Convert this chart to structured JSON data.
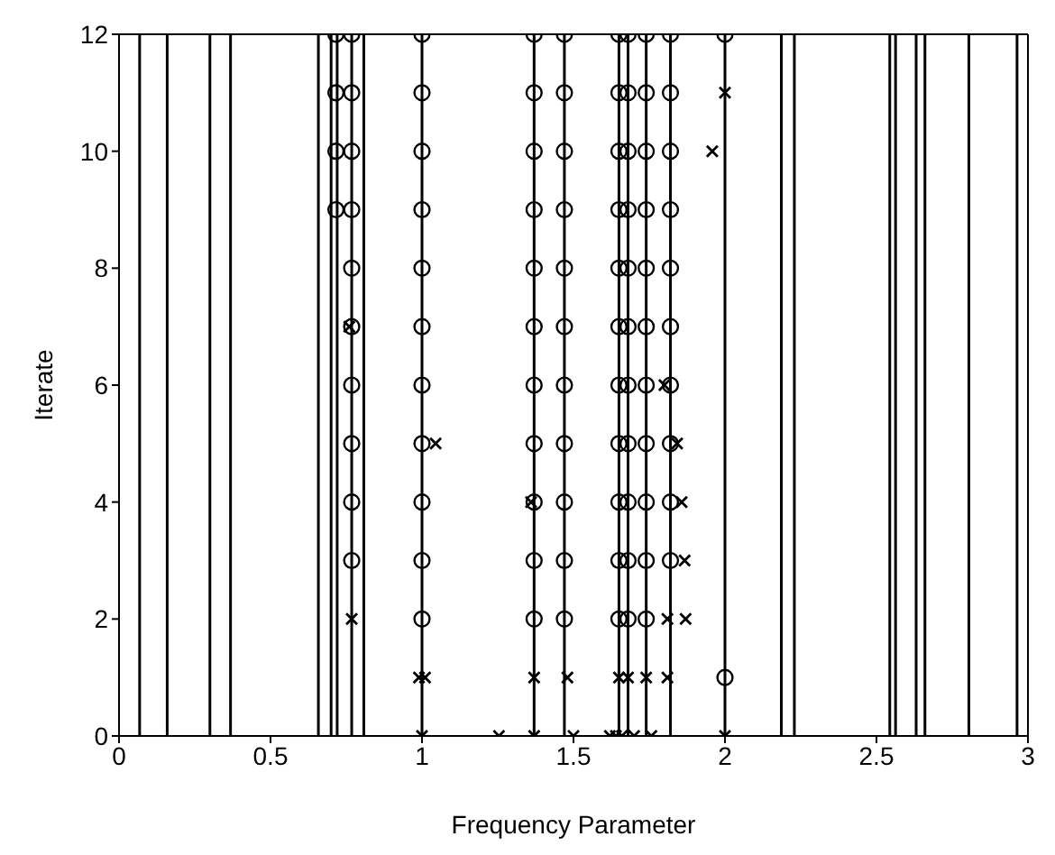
{
  "chart_data": {
    "type": "scatter",
    "xlabel": "Frequency Parameter",
    "ylabel": "Iterate",
    "xlim": [
      0,
      3
    ],
    "ylim": [
      0,
      12
    ],
    "xticks": [
      0,
      0.5,
      1,
      1.5,
      2,
      2.5,
      3
    ],
    "yticks": [
      0,
      2,
      4,
      6,
      8,
      10,
      12
    ],
    "grid": false,
    "legend": false,
    "series": [
      {
        "type": "scatter",
        "marker": "circle",
        "color": "#000000",
        "x": [
          0.716,
          0.716,
          0.716,
          0.716,
          0.768,
          0.768,
          0.768,
          0.768,
          0.768,
          0.768,
          0.768,
          0.768,
          0.768,
          0.768,
          1.0,
          1.0,
          1.0,
          1.0,
          1.0,
          1.0,
          1.0,
          1.0,
          1.0,
          1.0,
          1.0,
          1.37,
          1.37,
          1.37,
          1.37,
          1.37,
          1.37,
          1.37,
          1.37,
          1.37,
          1.37,
          1.37,
          1.47,
          1.47,
          1.47,
          1.47,
          1.47,
          1.47,
          1.47,
          1.47,
          1.47,
          1.47,
          1.47,
          1.65,
          1.65,
          1.65,
          1.65,
          1.65,
          1.65,
          1.65,
          1.65,
          1.65,
          1.65,
          1.65,
          1.68,
          1.68,
          1.68,
          1.68,
          1.68,
          1.68,
          1.68,
          1.68,
          1.68,
          1.68,
          1.68,
          1.74,
          1.74,
          1.74,
          1.74,
          1.74,
          1.74,
          1.74,
          1.74,
          1.74,
          1.74,
          1.74,
          1.82,
          1.82,
          1.82,
          1.82,
          1.82,
          1.82,
          1.82,
          1.82,
          1.82,
          1.82,
          2.0,
          2.0
        ],
        "values": [
          9,
          10,
          11,
          12,
          3,
          4,
          5,
          6,
          7,
          8,
          9,
          10,
          11,
          12,
          2,
          3,
          4,
          5,
          6,
          7,
          8,
          9,
          10,
          11,
          12,
          2,
          3,
          4,
          5,
          6,
          7,
          8,
          9,
          10,
          11,
          12,
          2,
          3,
          4,
          5,
          6,
          7,
          8,
          9,
          10,
          11,
          12,
          2,
          3,
          4,
          5,
          6,
          7,
          8,
          9,
          10,
          11,
          12,
          2,
          3,
          4,
          5,
          6,
          7,
          8,
          9,
          10,
          11,
          12,
          2,
          3,
          4,
          5,
          6,
          7,
          8,
          9,
          10,
          11,
          12,
          3,
          4,
          5,
          6,
          7,
          8,
          9,
          10,
          11,
          12,
          1,
          12
        ]
      },
      {
        "type": "scatter",
        "marker": "cross",
        "color": "#000000",
        "x": [
          0.76,
          0.768,
          1.045,
          0.99,
          1.01,
          1.0,
          1.254,
          1.36,
          1.37,
          1.37,
          1.48,
          1.5,
          1.65,
          1.68,
          1.74,
          1.62,
          1.64,
          1.66,
          1.7,
          1.757,
          1.8,
          1.842,
          1.857,
          1.867,
          1.81,
          1.87,
          1.81,
          1.958,
          2.0,
          2.0
        ],
        "values": [
          7,
          2,
          5,
          1,
          1,
          0,
          0,
          4,
          1,
          0,
          1,
          0,
          1,
          1,
          1,
          0,
          0,
          0,
          0,
          0,
          6,
          5,
          4,
          3,
          2,
          2,
          1,
          10,
          11,
          0
        ]
      }
    ],
    "ref_lines": [
      {
        "axis": "x",
        "value": 0.068
      },
      {
        "axis": "x",
        "value": 0.159
      },
      {
        "axis": "x",
        "value": 0.3
      },
      {
        "axis": "x",
        "value": 0.368
      },
      {
        "axis": "x",
        "value": 0.658
      },
      {
        "axis": "x",
        "value": 0.7
      },
      {
        "axis": "x",
        "value": 0.72
      },
      {
        "axis": "x",
        "value": 0.768
      },
      {
        "axis": "x",
        "value": 0.808
      },
      {
        "axis": "x",
        "value": 1.0
      },
      {
        "axis": "x",
        "value": 1.37
      },
      {
        "axis": "x",
        "value": 1.47
      },
      {
        "axis": "x",
        "value": 1.65
      },
      {
        "axis": "x",
        "value": 1.68
      },
      {
        "axis": "x",
        "value": 1.74
      },
      {
        "axis": "x",
        "value": 1.82
      },
      {
        "axis": "x",
        "value": 2.0
      },
      {
        "axis": "x",
        "value": 2.186
      },
      {
        "axis": "x",
        "value": 2.229
      },
      {
        "axis": "x",
        "value": 2.544
      },
      {
        "axis": "x",
        "value": 2.563
      },
      {
        "axis": "x",
        "value": 2.631
      },
      {
        "axis": "x",
        "value": 2.66
      },
      {
        "axis": "x",
        "value": 2.805
      },
      {
        "axis": "x",
        "value": 2.964
      }
    ]
  }
}
